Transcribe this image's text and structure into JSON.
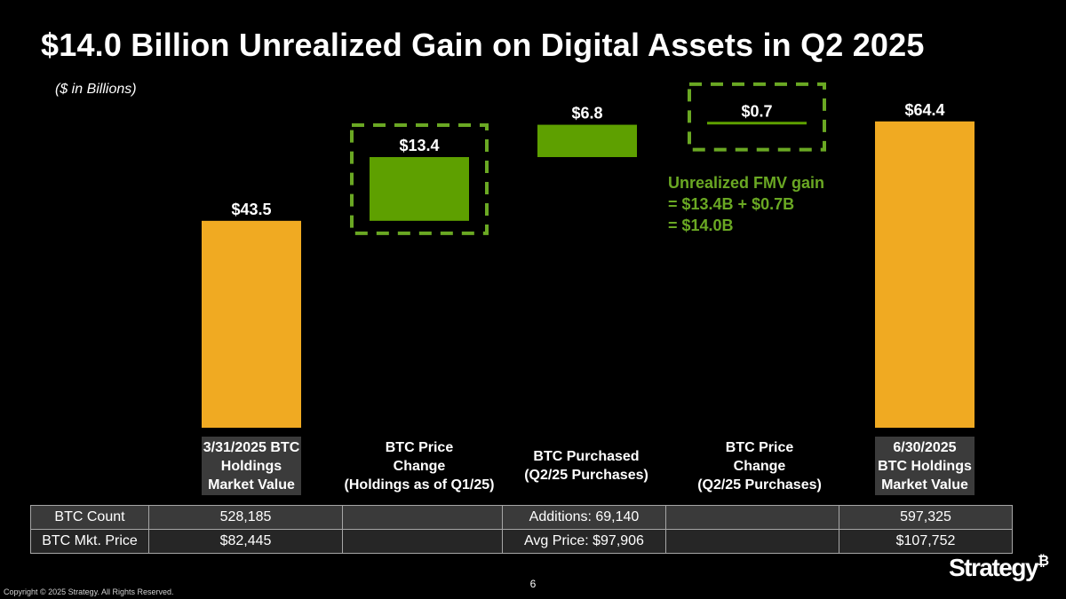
{
  "title": "$14.0 Billion Unrealized Gain on Digital Assets in Q2 2025",
  "subtitle": "($ in Billions)",
  "colors": {
    "ends": "#f0aa22",
    "change": "#5ea000",
    "annotation": "#6aa823",
    "dash": "#6aa823"
  },
  "chart_data": {
    "type": "bar",
    "subtype": "waterfall",
    "categories": [
      "3/31/2025 BTC\nHoldings\nMarket Value",
      "BTC Price\nChange\n(Holdings as of Q1/25)",
      "BTC Purchased\n(Q2/25 Purchases)",
      "BTC Price\nChange\n(Q2/25 Purchases)",
      "6/30/2025\nBTC Holdings\nMarket Value"
    ],
    "steps": [
      {
        "kind": "total",
        "start": 0,
        "end": 43.5,
        "value": 43.5
      },
      {
        "kind": "change",
        "start": 43.5,
        "end": 56.9,
        "value": 13.4
      },
      {
        "kind": "change",
        "start": 56.9,
        "end": 63.7,
        "value": 6.8
      },
      {
        "kind": "change",
        "start": 63.7,
        "end": 64.4,
        "value": 0.7
      },
      {
        "kind": "total",
        "start": 0,
        "end": 64.4,
        "value": 64.4
      }
    ],
    "data_labels": [
      "$43.5",
      "$13.4",
      "$6.8",
      "$0.7",
      "$64.4"
    ],
    "highlighted": [
      1,
      3
    ],
    "ylim": [
      0,
      66
    ]
  },
  "annotation": {
    "line1": "Unrealized FMV gain",
    "line2": "= $13.4B + $0.7B",
    "line3": "= $14.0B"
  },
  "table": {
    "rows": [
      [
        "BTC Count",
        "528,185",
        "",
        "Additions: 69,140",
        "",
        "597,325"
      ],
      [
        "BTC Mkt. Price",
        "$82,445",
        "",
        "Avg Price: $97,906",
        "",
        "$107,752"
      ]
    ]
  },
  "footer": {
    "page_number": "6",
    "copyright": "Copyright © 2025 Strategy. All Rights Reserved.",
    "logo": "Strategy",
    "logo_mark": "₿"
  }
}
